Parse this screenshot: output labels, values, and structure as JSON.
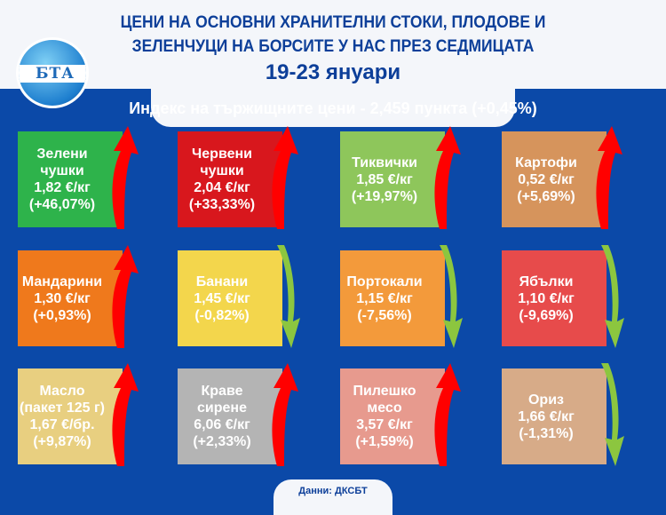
{
  "header": {
    "title_line1": "ЦЕНИ НА ОСНОВНИ ХРАНИТЕЛНИ СТОКИ, ПЛОДОВЕ И",
    "title_line2": "ЗЕЛЕНЧУЦИ НА БОРСИТЕ У НАС ПРЕЗ СЕДМИЦАТА",
    "date": "19-23 януари",
    "logo_text": "БТА"
  },
  "index_text": "Индекс на тържищните цени - 2,459 пункта (+0,45%)",
  "items": [
    {
      "name": "Зелени чушки",
      "price": "1,82 €/кг",
      "change": "(+46,07%)",
      "direction": "up",
      "color": "#2eb34b"
    },
    {
      "name": "Червени чушки",
      "price": "2,04 €/кг",
      "change": "(+33,33%)",
      "direction": "up",
      "color": "#d8171d"
    },
    {
      "name": "Тиквички",
      "price": "1,85 €/кг",
      "change": "(+19,97%)",
      "direction": "up",
      "color": "#8ec65b"
    },
    {
      "name": "Картофи",
      "price": "0,52 €/кг",
      "change": "(+5,69%)",
      "direction": "up",
      "color": "#d6945c"
    },
    {
      "name": "Мандарини",
      "price": "1,30 €/кг",
      "change": "(+0,93%)",
      "direction": "up",
      "color": "#ef791c"
    },
    {
      "name": "Банани",
      "price": "1,45 €/кг",
      "change": "(-0,82%)",
      "direction": "down",
      "color": "#f3d64c"
    },
    {
      "name": "Портокали",
      "price": "1,15 €/кг",
      "change": "(-7,56%)",
      "direction": "down",
      "color": "#f39a3b"
    },
    {
      "name": "Ябълки",
      "price": "1,10 €/кг",
      "change": "(-9,69%)",
      "direction": "down",
      "color": "#e74b4b"
    },
    {
      "name": "Масло (пакет 125 г)",
      "price": "1,67 €/бр.",
      "change": "(+9,87%)",
      "direction": "up",
      "color": "#e8cf80"
    },
    {
      "name": "Краве сирене",
      "price": "6,06 €/кг",
      "change": "(+2,33%)",
      "direction": "up",
      "color": "#b4b4b4"
    },
    {
      "name": "Пилешко месо",
      "price": "3,57 €/кг",
      "change": "(+1,59%)",
      "direction": "up",
      "color": "#e79a8e"
    },
    {
      "name": "Ориз",
      "price": "1,66 €/кг",
      "change": "(-1,31%)",
      "direction": "down",
      "color": "#d7ab88"
    }
  ],
  "footer": "Данни: ДКСБТ",
  "colors": {
    "background": "#0b49a8",
    "up_arrow": "#ff0000",
    "down_arrow": "#8cc63f",
    "title": "#0d3f99"
  }
}
